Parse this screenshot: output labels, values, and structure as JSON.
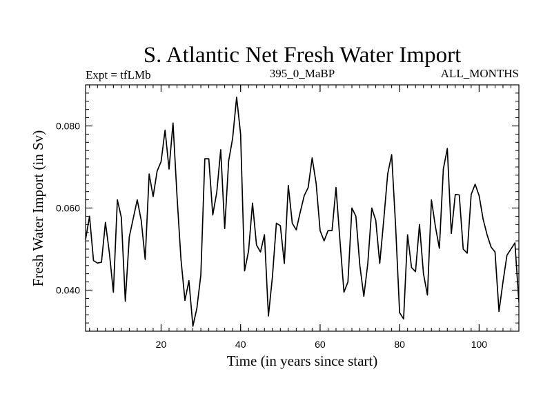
{
  "chart_data": {
    "type": "line",
    "title": "S. Atlantic Net Fresh Water Import",
    "subtitle_left": "Expt = tfLMb",
    "subtitle_center": "395_0_MaBP",
    "subtitle_right": "ALL_MONTHS",
    "xlabel": "Time (in years since start)",
    "ylabel": "Fresh Water Import (in Sv)",
    "xlim": [
      1,
      110
    ],
    "ylim": [
      0.03,
      0.09
    ],
    "x_ticks": [
      20,
      40,
      60,
      80,
      100
    ],
    "x_tick_labels": [
      "20",
      "40",
      "60",
      "80",
      "100"
    ],
    "x_minor_step": 2,
    "y_ticks": [
      0.04,
      0.06,
      0.08
    ],
    "y_tick_labels": [
      "0.040",
      "0.060",
      "0.080"
    ],
    "y_minor_step": 0.002,
    "grid": false,
    "line_color": "#000000",
    "series": [
      {
        "name": "Fresh Water Import",
        "x": [
          1,
          2,
          3,
          4,
          5,
          6,
          7,
          8,
          9,
          10,
          11,
          12,
          13,
          14,
          15,
          16,
          17,
          18,
          19,
          20,
          21,
          22,
          23,
          24,
          25,
          26,
          27,
          28,
          29,
          30,
          31,
          32,
          33,
          34,
          35,
          36,
          37,
          38,
          39,
          40,
          41,
          42,
          43,
          44,
          45,
          46,
          47,
          48,
          49,
          50,
          51,
          52,
          53,
          54,
          55,
          56,
          57,
          58,
          59,
          60,
          61,
          62,
          63,
          64,
          65,
          66,
          67,
          68,
          69,
          70,
          71,
          72,
          73,
          74,
          75,
          76,
          77,
          78,
          79,
          80,
          81,
          82,
          83,
          84,
          85,
          86,
          87,
          88,
          89,
          90,
          91,
          92,
          93,
          94,
          95,
          96,
          97,
          98,
          99,
          100,
          101,
          102,
          103,
          104,
          105,
          106,
          107,
          108,
          109,
          110
        ],
        "values": [
          0.0523,
          0.058,
          0.0472,
          0.0466,
          0.0468,
          0.0565,
          0.049,
          0.0395,
          0.062,
          0.0577,
          0.0373,
          0.053,
          0.0575,
          0.062,
          0.057,
          0.0475,
          0.0683,
          0.0628,
          0.069,
          0.0713,
          0.079,
          0.0695,
          0.0807,
          0.063,
          0.0475,
          0.0375,
          0.0423,
          0.0312,
          0.0356,
          0.0437,
          0.072,
          0.072,
          0.0583,
          0.0638,
          0.0742,
          0.055,
          0.0715,
          0.077,
          0.087,
          0.078,
          0.0447,
          0.0495,
          0.0612,
          0.051,
          0.0493,
          0.0535,
          0.0337,
          0.0432,
          0.0563,
          0.0557,
          0.0465,
          0.0655,
          0.0563,
          0.0547,
          0.059,
          0.063,
          0.065,
          0.0722,
          0.066,
          0.0545,
          0.052,
          0.0545,
          0.0545,
          0.065,
          0.052,
          0.0395,
          0.042,
          0.06,
          0.058,
          0.046,
          0.0385,
          0.0465,
          0.06,
          0.057,
          0.0465,
          0.057,
          0.0683,
          0.073,
          0.0555,
          0.0345,
          0.033,
          0.0535,
          0.0455,
          0.0445,
          0.056,
          0.044,
          0.0388,
          0.062,
          0.0555,
          0.0502,
          0.0695,
          0.0745,
          0.0538,
          0.0633,
          0.0632,
          0.05,
          0.049,
          0.0633,
          0.0658,
          0.063,
          0.0573,
          0.0535,
          0.0505,
          0.0493,
          0.0348,
          0.042,
          0.0485,
          0.05,
          0.0515,
          0.0372
        ]
      }
    ]
  }
}
